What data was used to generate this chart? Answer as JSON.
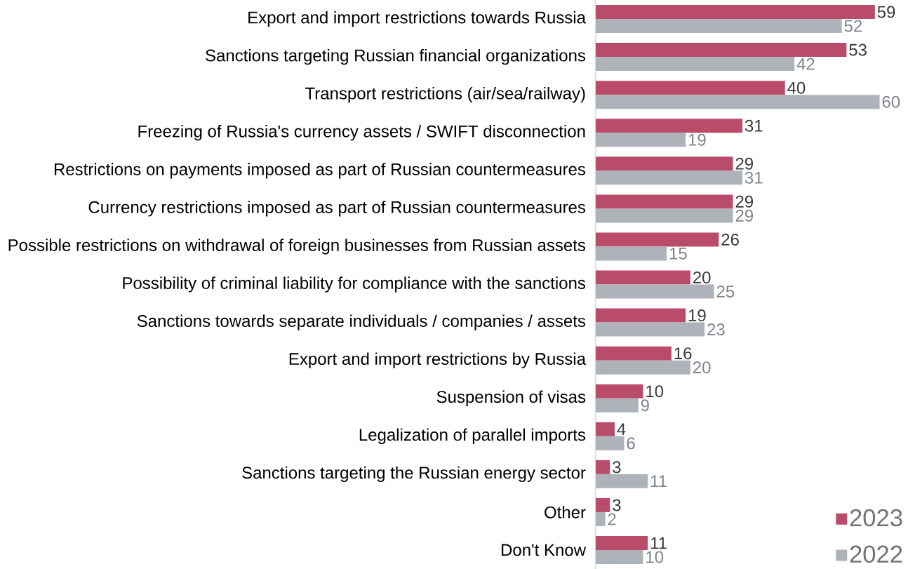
{
  "chart_data": {
    "type": "bar",
    "orientation": "horizontal",
    "data_labels": true,
    "legend": "bottom right",
    "categories": [
      "Export and import restrictions towards Russia",
      "Sanctions targeting Russian financial organizations",
      "Transport restrictions (air/sea/railway)",
      "Freezing of Russia's currency assets / SWIFT disconnection",
      "Restrictions on payments imposed as part of Russian countermeasures",
      "Currency restrictions imposed as part of Russian countermeasures",
      "Possible restrictions on withdrawal of foreign businesses from Russian assets",
      "Possibility of criminal liability for compliance with the sanctions",
      "Sanctions towards separate individuals / companies / assets",
      "Export and import restrictions by Russia",
      "Suspension of visas",
      "Legalization of parallel imports",
      "Sanctions targeting the Russian energy sector",
      "Other",
      "Don't Know"
    ],
    "series": [
      {
        "name": "2023",
        "color": "#b94c6b",
        "values": [
          59,
          53,
          40,
          31,
          29,
          29,
          26,
          20,
          19,
          16,
          10,
          4,
          3,
          3,
          11
        ]
      },
      {
        "name": "2022",
        "color": "#aeb3b9",
        "values": [
          52,
          42,
          60,
          19,
          31,
          29,
          15,
          25,
          23,
          20,
          9,
          6,
          11,
          2,
          10
        ]
      }
    ]
  }
}
